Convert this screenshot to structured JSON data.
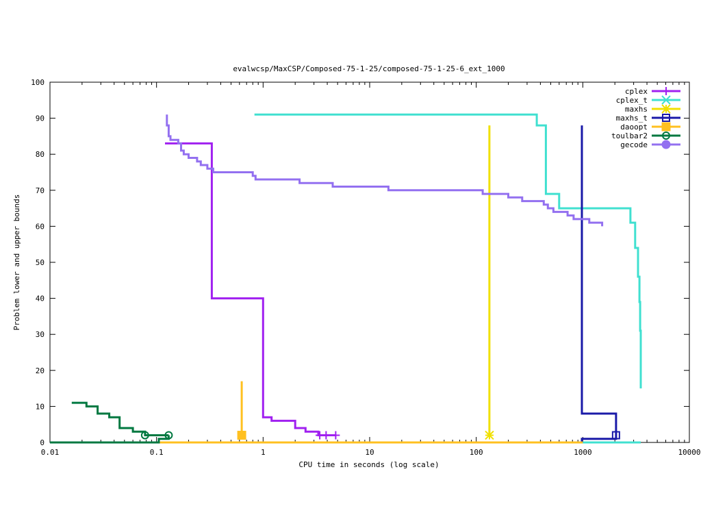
{
  "chart_data": {
    "type": "line",
    "title": "evalwcsp/MaxCSP/Composed-75-1-25/composed-75-1-25-6_ext_1000",
    "xlabel": "CPU time in seconds (log scale)",
    "ylabel": "Problem lower and upper bounds",
    "xscale": "log",
    "xlim": [
      0.01,
      10000
    ],
    "ylim": [
      0,
      100
    ],
    "xticks": [
      {
        "value": 0.01,
        "label": "0.01"
      },
      {
        "value": 0.1,
        "label": "0.1"
      },
      {
        "value": 1,
        "label": "1"
      },
      {
        "value": 10,
        "label": "10"
      },
      {
        "value": 100,
        "label": "100"
      },
      {
        "value": 1000,
        "label": "1000"
      },
      {
        "value": 10000,
        "label": "10000"
      }
    ],
    "yticks": [
      {
        "value": 0,
        "label": "0"
      },
      {
        "value": 10,
        "label": "10"
      },
      {
        "value": 20,
        "label": "20"
      },
      {
        "value": 30,
        "label": "30"
      },
      {
        "value": 40,
        "label": "40"
      },
      {
        "value": 50,
        "label": "50"
      },
      {
        "value": 60,
        "label": "60"
      },
      {
        "value": 70,
        "label": "70"
      },
      {
        "value": 80,
        "label": "80"
      },
      {
        "value": 90,
        "label": "90"
      },
      {
        "value": 100,
        "label": "100"
      }
    ],
    "grid": false,
    "legend_position": "top-right",
    "series": [
      {
        "name": "cplex",
        "color": "#a020f0",
        "marker": "plus",
        "lines": [
          [
            [
              0.12,
              83
            ],
            [
              0.33,
              83
            ],
            [
              0.33,
              40
            ],
            [
              1.0,
              40
            ],
            [
              1.0,
              7
            ],
            [
              1.2,
              7
            ],
            [
              1.2,
              6
            ],
            [
              2.0,
              6
            ],
            [
              2.0,
              4
            ],
            [
              2.5,
              4
            ],
            [
              2.5,
              3
            ],
            [
              3.3,
              3
            ],
            [
              3.3,
              2
            ],
            [
              4.8,
              2
            ]
          ],
          [
            [
              0.12,
              0
            ],
            [
              4.8,
              0
            ]
          ]
        ],
        "markers": [
          [
            3.4,
            2
          ],
          [
            3.9,
            2
          ],
          [
            4.8,
            2
          ]
        ]
      },
      {
        "name": "cplex_t",
        "color": "#40e0d0",
        "marker": "x",
        "lines": [
          [
            [
              0.83,
              91
            ],
            [
              370,
              91
            ],
            [
              370,
              88
            ],
            [
              450,
              88
            ],
            [
              450,
              69
            ],
            [
              600,
              69
            ],
            [
              600,
              65
            ],
            [
              2800,
              65
            ],
            [
              2800,
              61
            ],
            [
              3100,
              61
            ],
            [
              3100,
              54
            ],
            [
              3300,
              54
            ],
            [
              3300,
              46
            ],
            [
              3400,
              46
            ],
            [
              3400,
              39
            ],
            [
              3450,
              39
            ],
            [
              3450,
              31
            ],
            [
              3500,
              31
            ],
            [
              3500,
              15
            ]
          ],
          [
            [
              500,
              0
            ],
            [
              3500,
              0
            ]
          ]
        ],
        "markers": []
      },
      {
        "name": "maxhs",
        "color": "#f0e000",
        "marker": "star",
        "lines": [
          [
            [
              133,
              88
            ],
            [
              133,
              2
            ]
          ]
        ],
        "markers": [
          [
            133,
            2
          ]
        ]
      },
      {
        "name": "maxhs_t",
        "color": "#1a1aa8",
        "marker": "square",
        "lines": [
          [
            [
              980,
              88
            ],
            [
              980,
              8
            ],
            [
              2050,
              8
            ],
            [
              2050,
              2
            ]
          ],
          [
            [
              980,
              0
            ],
            [
              980,
              1
            ],
            [
              2050,
              1
            ],
            [
              2050,
              2
            ]
          ]
        ],
        "markers": [
          [
            2050,
            2
          ]
        ]
      },
      {
        "name": "daoopt",
        "color": "#ffc020",
        "marker": "filled-square",
        "lines": [
          [
            [
              0.63,
              17
            ],
            [
              0.63,
              2
            ]
          ],
          [
            [
              0.01,
              0
            ],
            [
              1000,
              0
            ]
          ]
        ],
        "markers": [
          [
            0.63,
            2
          ]
        ]
      },
      {
        "name": "toulbar2",
        "color": "#007840",
        "marker": "circle",
        "lines": [
          [
            [
              0.016,
              11
            ],
            [
              0.022,
              11
            ],
            [
              0.022,
              10
            ],
            [
              0.028,
              10
            ],
            [
              0.028,
              8
            ],
            [
              0.036,
              8
            ],
            [
              0.036,
              7
            ],
            [
              0.045,
              7
            ],
            [
              0.045,
              4
            ],
            [
              0.06,
              4
            ],
            [
              0.06,
              3
            ],
            [
              0.078,
              3
            ],
            [
              0.078,
              2
            ],
            [
              0.13,
              2
            ]
          ],
          [
            [
              0.01,
              0
            ],
            [
              0.105,
              0
            ],
            [
              0.105,
              1
            ],
            [
              0.13,
              1
            ],
            [
              0.13,
              2
            ]
          ]
        ],
        "markers": [
          [
            0.078,
            2
          ],
          [
            0.13,
            2
          ]
        ]
      },
      {
        "name": "gecode",
        "color": "#9370f0",
        "marker": "filled-circle",
        "lines": [
          [
            [
              0.125,
              91
            ],
            [
              0.125,
              88
            ],
            [
              0.13,
              88
            ],
            [
              0.13,
              85
            ],
            [
              0.135,
              85
            ],
            [
              0.135,
              84
            ],
            [
              0.16,
              84
            ],
            [
              0.16,
              83
            ],
            [
              0.17,
              83
            ],
            [
              0.17,
              81
            ],
            [
              0.18,
              81
            ],
            [
              0.18,
              80
            ],
            [
              0.2,
              80
            ],
            [
              0.2,
              79
            ],
            [
              0.24,
              79
            ],
            [
              0.24,
              78
            ],
            [
              0.26,
              78
            ],
            [
              0.26,
              77
            ],
            [
              0.3,
              77
            ],
            [
              0.3,
              76
            ],
            [
              0.34,
              76
            ],
            [
              0.34,
              75
            ],
            [
              0.8,
              75
            ],
            [
              0.8,
              74
            ],
            [
              0.85,
              74
            ],
            [
              0.85,
              73
            ],
            [
              2.2,
              73
            ],
            [
              2.2,
              72
            ],
            [
              4.5,
              72
            ],
            [
              4.5,
              71
            ],
            [
              15,
              71
            ],
            [
              15,
              70
            ],
            [
              115,
              70
            ],
            [
              115,
              69
            ],
            [
              200,
              69
            ],
            [
              200,
              68
            ],
            [
              270,
              68
            ],
            [
              270,
              67
            ],
            [
              430,
              67
            ],
            [
              430,
              66
            ],
            [
              470,
              66
            ],
            [
              470,
              65
            ],
            [
              530,
              65
            ],
            [
              530,
              64
            ],
            [
              720,
              64
            ],
            [
              720,
              63
            ],
            [
              820,
              63
            ],
            [
              820,
              62
            ],
            [
              1150,
              62
            ],
            [
              1150,
              61
            ],
            [
              1520,
              61
            ],
            [
              1520,
              60
            ]
          ]
        ],
        "markers": []
      }
    ]
  }
}
